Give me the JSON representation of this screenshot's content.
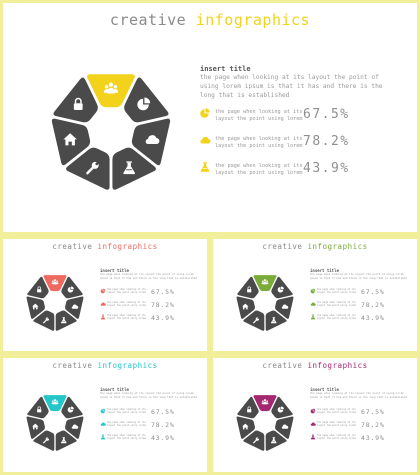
{
  "slides": [
    {
      "title_main": "creative ",
      "title_accent": "infographics",
      "accent": "#f2d21b",
      "insert_title": "insert title",
      "description": "the page when looking at its layout the point of using lorem ipsum is that it has and there is the long that is established",
      "stats": [
        {
          "icon": "pie-chart-icon",
          "text": "the page when looking at its layout the point using lorem",
          "value": "67.5%"
        },
        {
          "icon": "cloud-icon",
          "text": "the page when looking at its layout the point using lorem",
          "value": "78.2%"
        },
        {
          "icon": "flask-icon",
          "text": "the page when looking at its layout the point using lorem",
          "value": "43.9%"
        }
      ]
    },
    {
      "title_main": "creative ",
      "title_accent": "infographics",
      "accent": "#ee6a60",
      "insert_title": "insert title",
      "description": "the page when looking at its layout the point of using lorem ipsum is that it has and there is the long that is established",
      "stats": [
        {
          "icon": "pie-chart-icon",
          "text": "the page when looking at its layout the point using lorem",
          "value": "67.5%"
        },
        {
          "icon": "cloud-icon",
          "text": "the page when looking at its layout the point using lorem",
          "value": "78.2%"
        },
        {
          "icon": "flask-icon",
          "text": "the page when looking at its layout the point using lorem",
          "value": "43.9%"
        }
      ]
    },
    {
      "title_main": "creative ",
      "title_accent": "infographics",
      "accent": "#7bac3a",
      "insert_title": "insert title",
      "description": "the page when looking at its layout the point of using lorem ipsum is that it has and there is the long that is established",
      "stats": [
        {
          "icon": "pie-chart-icon",
          "text": "the page when looking at its layout the point using lorem",
          "value": "67.5%"
        },
        {
          "icon": "cloud-icon",
          "text": "the page when looking at its layout the point using lorem",
          "value": "78.2%"
        },
        {
          "icon": "flask-icon",
          "text": "the page when looking at its layout the point using lorem",
          "value": "43.9%"
        }
      ]
    },
    {
      "title_main": "creative ",
      "title_accent": "infographics",
      "accent": "#23c6c9",
      "insert_title": "insert title",
      "description": "the page when looking at its layout the point of using lorem ipsum is that it has and there is the long that is established",
      "stats": [
        {
          "icon": "pie-chart-icon",
          "text": "the page when looking at its layout the point using lorem",
          "value": "67.5%"
        },
        {
          "icon": "cloud-icon",
          "text": "the page when looking at its layout the point using lorem",
          "value": "78.2%"
        },
        {
          "icon": "flask-icon",
          "text": "the page when looking at its layout the point using lorem",
          "value": "43.9%"
        }
      ]
    },
    {
      "title_main": "creative ",
      "title_accent": "infographics",
      "accent": "#a32870",
      "insert_title": "insert title",
      "description": "the page when looking at its layout the point of using lorem ipsum is that it has and there is the long that is established",
      "stats": [
        {
          "icon": "pie-chart-icon",
          "text": "the page when looking at its layout the point using lorem",
          "value": "67.5%"
        },
        {
          "icon": "cloud-icon",
          "text": "the page when looking at its layout the point using lorem",
          "value": "78.2%"
        },
        {
          "icon": "flask-icon",
          "text": "the page when looking at its layout the point using lorem",
          "value": "43.9%"
        }
      ]
    }
  ],
  "segment_icons": [
    "people-icon",
    "pie-chart-icon",
    "cloud-icon",
    "flask-icon",
    "wrench-icon",
    "home-icon",
    "lock-icon"
  ],
  "segment_color": "#4a4a4a"
}
